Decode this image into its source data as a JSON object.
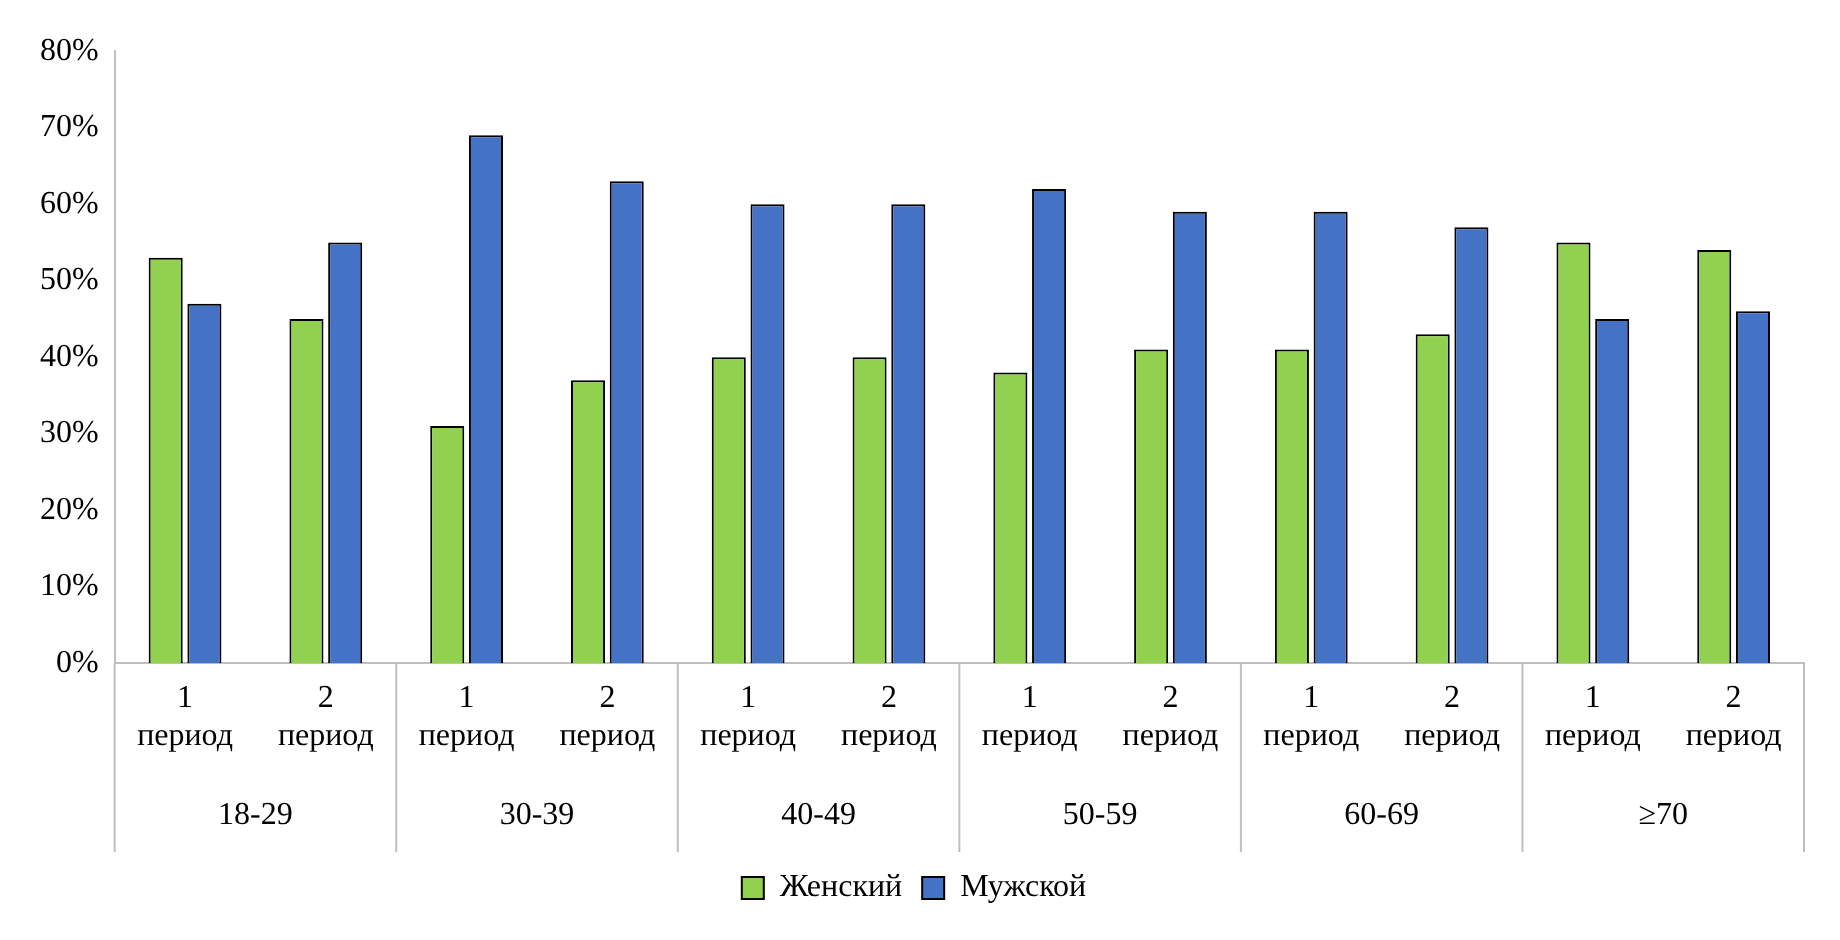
{
  "chart_data": {
    "type": "bar",
    "categories": [
      "1 период",
      "2 период",
      "1 период",
      "2 период",
      "1 период",
      "2 период",
      "1 период",
      "2 период",
      "1 период",
      "2 период",
      "1 период",
      "2 период"
    ],
    "annotations": [
      "18-29",
      "30-39",
      "40-49",
      "50-59",
      "60-69",
      "≥70"
    ],
    "series": [
      {
        "name": "Женский",
        "color": "#92d050",
        "values": [
          53,
          45,
          31,
          37,
          40,
          40,
          38,
          41,
          41,
          43,
          55,
          54
        ]
      },
      {
        "name": "Мужской",
        "color": "#4472c4",
        "values": [
          47,
          55,
          69,
          63,
          60,
          60,
          62,
          59,
          59,
          57,
          45,
          46
        ]
      }
    ],
    "ylim": [
      0,
      80
    ],
    "yticks": [
      {
        "value": 0,
        "label": "0%"
      },
      {
        "value": 10,
        "label": "10%"
      },
      {
        "value": 20,
        "label": "20%"
      },
      {
        "value": 30,
        "label": "30%"
      },
      {
        "value": 40,
        "label": "40%"
      },
      {
        "value": 50,
        "label": "50%"
      },
      {
        "value": 60,
        "label": "60%"
      },
      {
        "value": 70,
        "label": "70%"
      },
      {
        "value": 80,
        "label": "80%"
      }
    ],
    "grid": false,
    "legend": "bottom"
  }
}
